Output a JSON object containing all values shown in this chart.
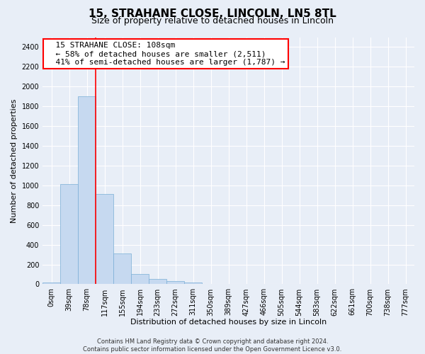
{
  "title": "15, STRAHANE CLOSE, LINCOLN, LN5 8TL",
  "subtitle": "Size of property relative to detached houses in Lincoln",
  "xlabel": "Distribution of detached houses by size in Lincoln",
  "ylabel": "Number of detached properties",
  "footer_line1": "Contains HM Land Registry data © Crown copyright and database right 2024.",
  "footer_line2": "Contains public sector information licensed under the Open Government Licence v3.0.",
  "bar_labels": [
    "0sqm",
    "39sqm",
    "78sqm",
    "117sqm",
    "155sqm",
    "194sqm",
    "233sqm",
    "272sqm",
    "311sqm",
    "350sqm",
    "389sqm",
    "427sqm",
    "466sqm",
    "505sqm",
    "544sqm",
    "583sqm",
    "622sqm",
    "661sqm",
    "700sqm",
    "738sqm",
    "777sqm"
  ],
  "bar_values": [
    20,
    1010,
    1900,
    910,
    310,
    105,
    52,
    30,
    15,
    0,
    0,
    0,
    0,
    0,
    0,
    0,
    0,
    0,
    0,
    0,
    0
  ],
  "bar_color": "#c6d9f0",
  "bar_edge_color": "#7aaed6",
  "vline_x": 2.5,
  "vline_color": "red",
  "annotation_text": "  15 STRAHANE CLOSE: 108sqm\n  ← 58% of detached houses are smaller (2,511)\n  41% of semi-detached houses are larger (1,787) →",
  "annotation_box_color": "white",
  "annotation_box_edge_color": "red",
  "ylim": [
    0,
    2500
  ],
  "yticks": [
    0,
    200,
    400,
    600,
    800,
    1000,
    1200,
    1400,
    1600,
    1800,
    2000,
    2200,
    2400
  ],
  "background_color": "#e8eef7",
  "plot_background": "#e8eef7",
  "grid_color": "white",
  "title_fontsize": 11,
  "subtitle_fontsize": 9,
  "axis_label_fontsize": 8,
  "tick_fontsize": 7,
  "annotation_fontsize": 8,
  "figwidth": 6.0,
  "figheight": 5.0,
  "dpi": 100
}
